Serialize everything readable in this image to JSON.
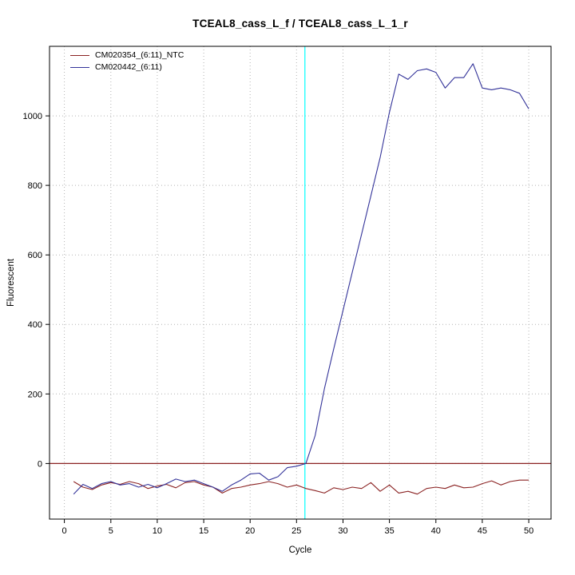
{
  "chart_data": {
    "type": "line",
    "title": "TCEAL8_cass_L_f / TCEAL8_cass_L_1_r",
    "xlabel": "Cycle",
    "ylabel": "Fluorescent",
    "xlim": [
      -1.6,
      52.4
    ],
    "ylim": [
      -160,
      1200
    ],
    "xticks": [
      0,
      5,
      10,
      15,
      20,
      25,
      30,
      35,
      40,
      45,
      50
    ],
    "yticks": [
      0,
      200,
      400,
      600,
      800,
      1000
    ],
    "grid": true,
    "legend_position": "top-left",
    "threshold_line_y": 0,
    "threshold_line_color": "#8b2323",
    "vline_x": 25.9,
    "vline_color": "#00ffff",
    "x": [
      1,
      2,
      3,
      4,
      5,
      6,
      7,
      8,
      9,
      10,
      11,
      12,
      13,
      14,
      15,
      16,
      17,
      18,
      19,
      20,
      21,
      22,
      23,
      24,
      25,
      26,
      27,
      28,
      29,
      30,
      31,
      32,
      33,
      34,
      35,
      36,
      37,
      38,
      39,
      40,
      41,
      42,
      43,
      44,
      45,
      46,
      47,
      48,
      49,
      50
    ],
    "series": [
      {
        "name": "CM020354_(6:11)_NTC",
        "color": "#8b2323",
        "values": [
          -52,
          -68,
          -75,
          -62,
          -55,
          -60,
          -52,
          -58,
          -72,
          -65,
          -60,
          -70,
          -55,
          -52,
          -62,
          -68,
          -85,
          -72,
          -68,
          -62,
          -58,
          -52,
          -58,
          -68,
          -62,
          -72,
          -78,
          -85,
          -70,
          -75,
          -68,
          -72,
          -55,
          -80,
          -62,
          -85,
          -80,
          -88,
          -72,
          -68,
          -72,
          -62,
          -70,
          -68,
          -58,
          -50,
          -62,
          -52,
          -48,
          -48
        ]
      },
      {
        "name": "CM020442_(6:11)",
        "color": "#333399",
        "values": [
          -88,
          -60,
          -72,
          -58,
          -52,
          -62,
          -58,
          -68,
          -60,
          -70,
          -58,
          -45,
          -52,
          -48,
          -58,
          -68,
          -80,
          -62,
          -48,
          -30,
          -28,
          -48,
          -38,
          -12,
          -8,
          0,
          80,
          215,
          330,
          440,
          550,
          660,
          770,
          880,
          1010,
          1120,
          1105,
          1130,
          1135,
          1125,
          1080,
          1110,
          1110,
          1150,
          1080,
          1075,
          1080,
          1075,
          1065,
          1020
        ]
      }
    ]
  }
}
